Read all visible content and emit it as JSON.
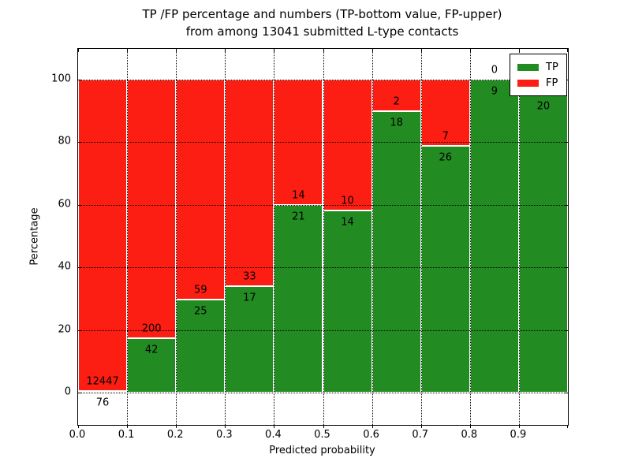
{
  "title": {
    "line1": "TP /FP percentage and numbers (TP-bottom value, FP-upper)",
    "line2": "from among 13041 submitted L-type contacts"
  },
  "axes": {
    "xlabel": "Predicted probability",
    "ylabel": "Percentage",
    "x_tick_labels": [
      "0.0",
      "0.1",
      "0.2",
      "0.3",
      "0.4",
      "0.5",
      "0.6",
      "0.7",
      "0.8",
      "0.9"
    ],
    "y_tick_values": [
      0,
      20,
      40,
      60,
      80,
      100
    ],
    "y_tick_labels": [
      "0",
      "20",
      "40",
      "60",
      "80",
      "100"
    ]
  },
  "legend": {
    "items": [
      {
        "label": "TP",
        "color": "#228b22"
      },
      {
        "label": "FP",
        "color": "#fc1d13"
      }
    ]
  },
  "chart_data": {
    "type": "bar",
    "stacked": true,
    "title": "TP /FP percentage and numbers (TP-bottom value, FP-upper) from among 13041 submitted L-type contacts",
    "xlabel": "Predicted probability",
    "ylabel": "Percentage",
    "xlim": [
      0.0,
      1.0
    ],
    "ylim": [
      -10.3,
      109.8
    ],
    "grid": true,
    "legend_position": "upper right",
    "x_bins": [
      "0.0-0.1",
      "0.1-0.2",
      "0.2-0.3",
      "0.3-0.4",
      "0.4-0.5",
      "0.5-0.6",
      "0.6-0.7",
      "0.7-0.8",
      "0.8-0.9",
      "0.9-1.0"
    ],
    "series": [
      {
        "name": "TP",
        "color": "#228b22",
        "counts": [
          76,
          42,
          25,
          17,
          21,
          14,
          18,
          26,
          9,
          20
        ]
      },
      {
        "name": "FP",
        "color": "#fc1d13",
        "counts": [
          12447,
          200,
          59,
          33,
          14,
          10,
          2,
          7,
          0,
          null
        ]
      }
    ],
    "tp_percent": [
      0.6,
      17.4,
      29.8,
      34.0,
      60.0,
      58.3,
      90.0,
      78.8,
      100.0,
      95.2
    ],
    "bar_labels": [
      {
        "bottom": "76",
        "upper": "12447"
      },
      {
        "bottom": "42",
        "upper": "200"
      },
      {
        "bottom": "25",
        "upper": "59"
      },
      {
        "bottom": "17",
        "upper": "33"
      },
      {
        "bottom": "21",
        "upper": "14"
      },
      {
        "bottom": "14",
        "upper": "10"
      },
      {
        "bottom": "18",
        "upper": "2"
      },
      {
        "bottom": "26",
        "upper": "7"
      },
      {
        "bottom": "9",
        "upper": "0"
      },
      {
        "bottom": "20",
        "upper": ""
      }
    ]
  }
}
